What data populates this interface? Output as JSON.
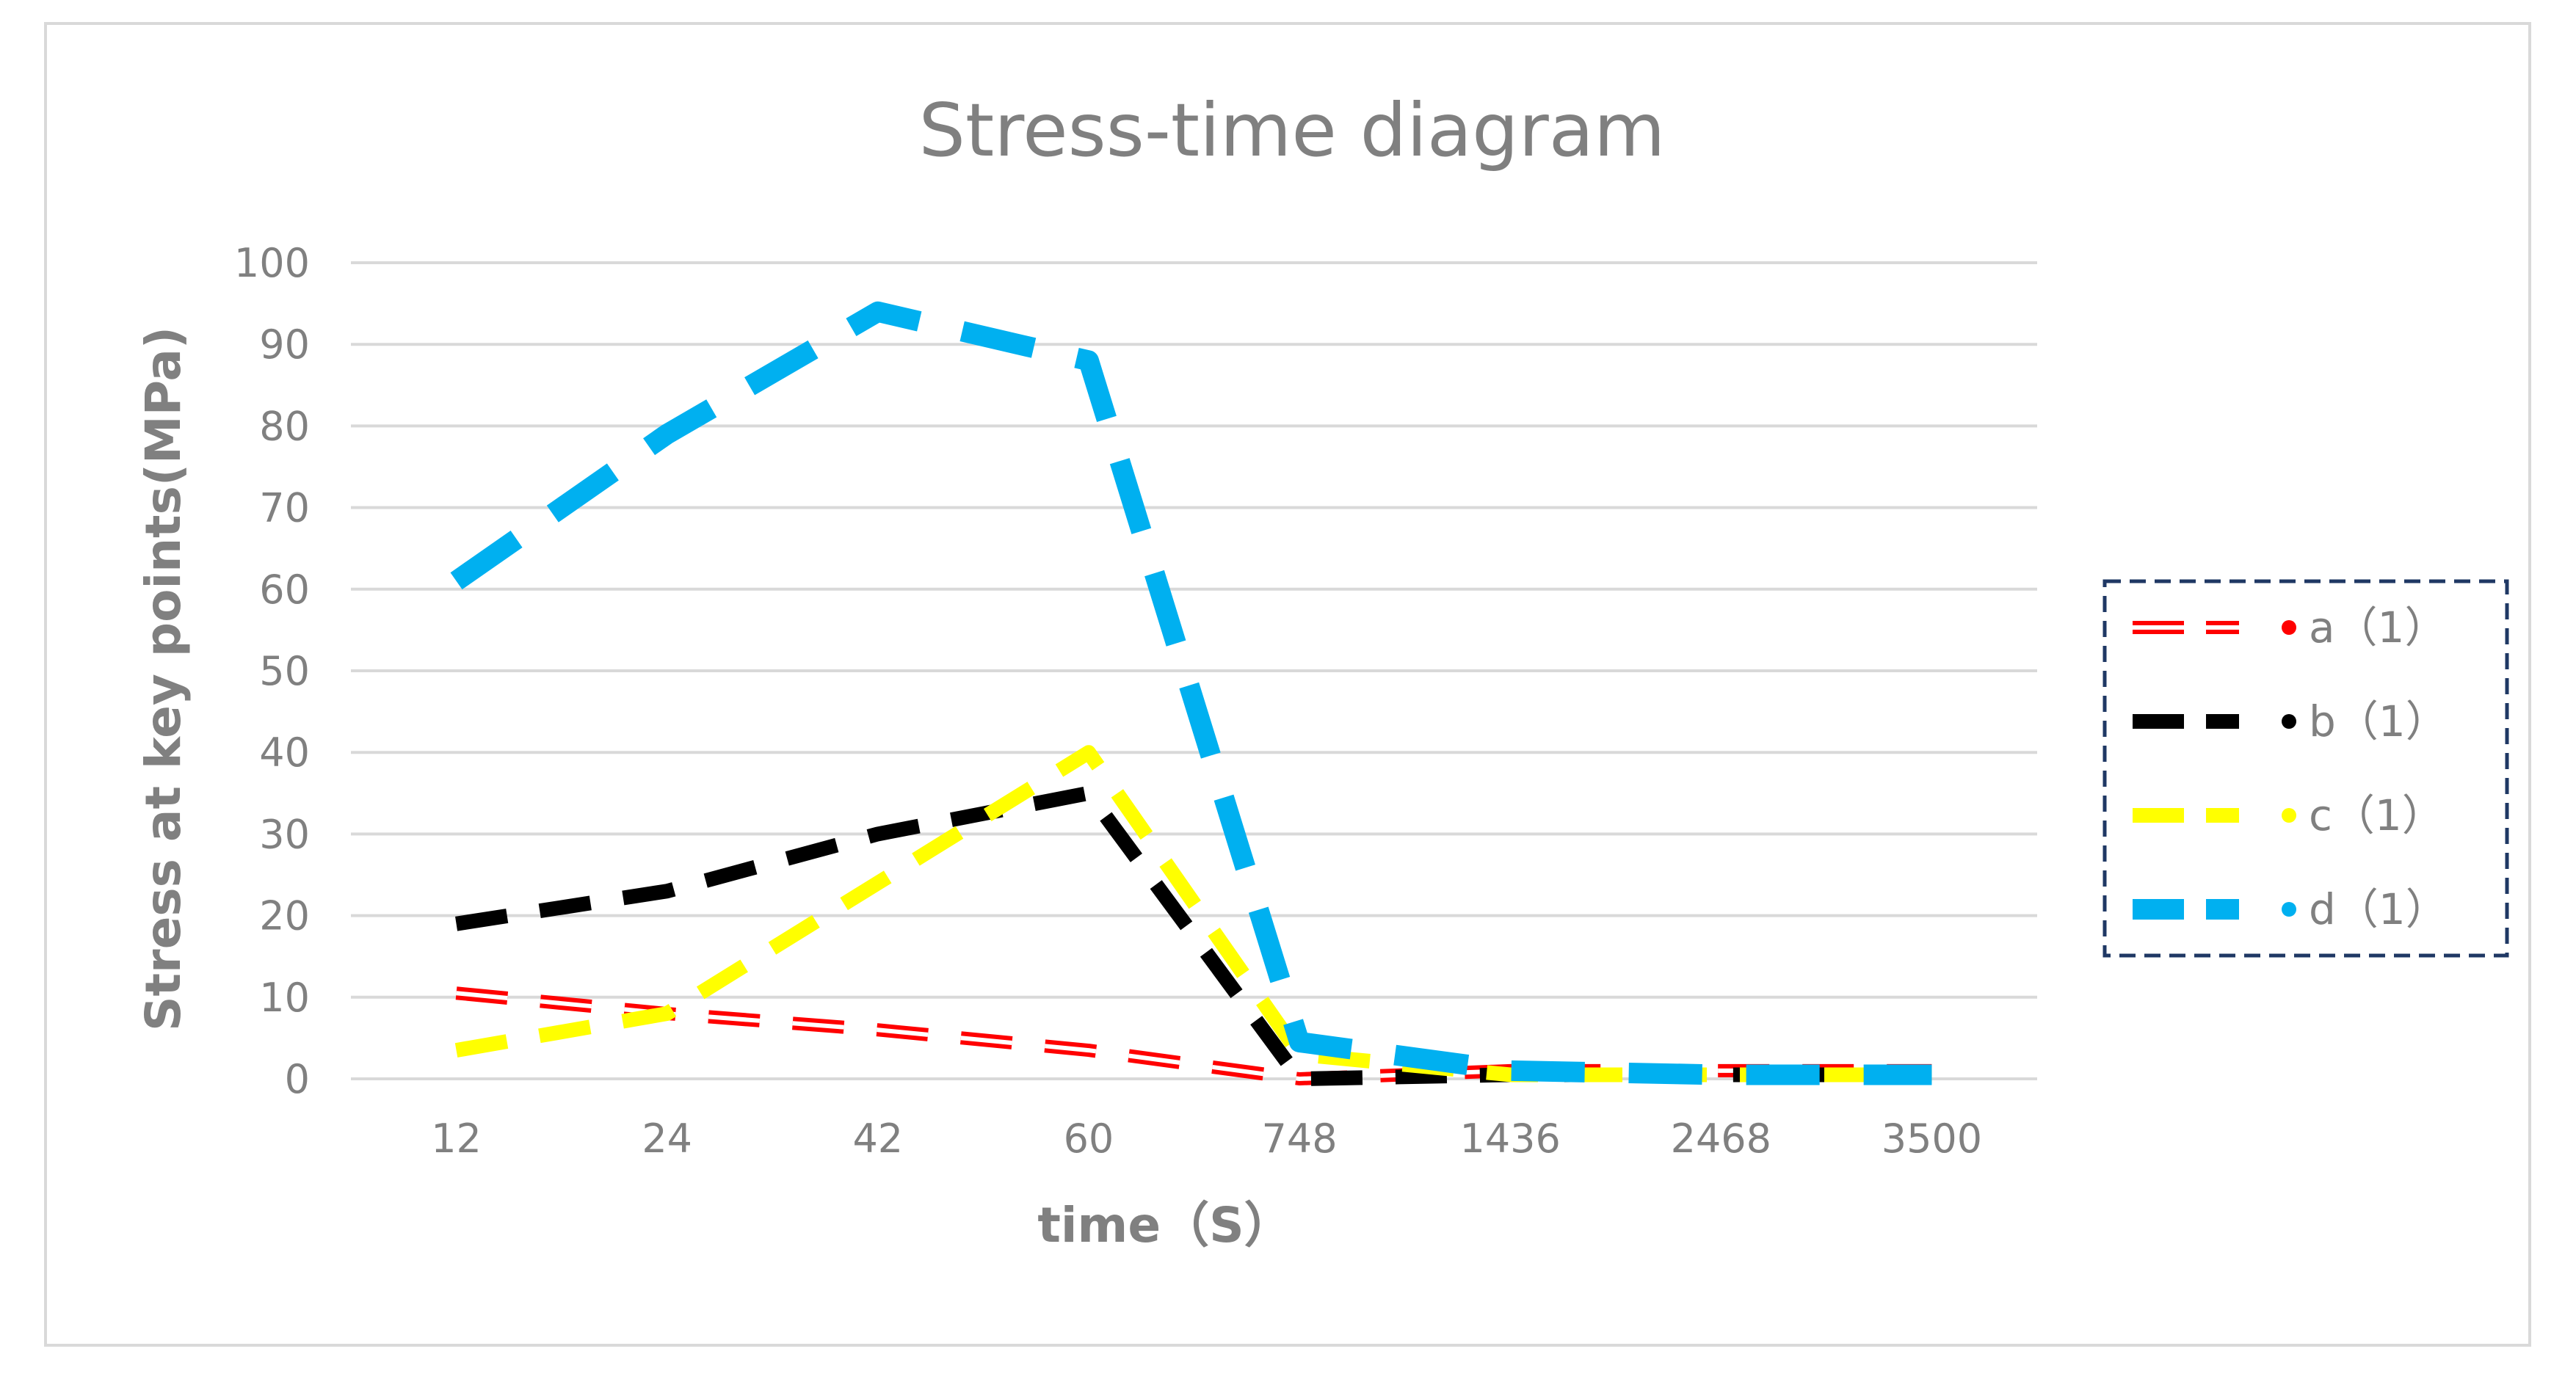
{
  "chart_data": {
    "type": "line",
    "title": "Stress-time diagram",
    "xlabel": "time（S）",
    "ylabel": "Stress at key points(MPa)",
    "categories": [
      "12",
      "24",
      "42",
      "60",
      "748",
      "1436",
      "2468",
      "3500"
    ],
    "ylim": [
      0,
      100
    ],
    "yticks": [
      "0",
      "10",
      "20",
      "30",
      "40",
      "50",
      "60",
      "70",
      "80",
      "90",
      "100"
    ],
    "grid": true,
    "legend_position": "right",
    "series": [
      {
        "name": "a（1）",
        "color": "#ff0000",
        "values": [
          10.5,
          8,
          6,
          3.5,
          0,
          1,
          1,
          1
        ]
      },
      {
        "name": "b（1）",
        "color": "#000000",
        "values": [
          19,
          23,
          30,
          35,
          0,
          0.5,
          0.5,
          0.5
        ]
      },
      {
        "name": "c（1）",
        "color": "#ffff00",
        "values": [
          3.5,
          8,
          24,
          40,
          3,
          0.5,
          0.5,
          0.5
        ]
      },
      {
        "name": "d（1）",
        "color": "#00b0f0",
        "values": [
          61,
          79,
          94,
          88,
          4.5,
          1,
          0.5,
          0.5
        ]
      }
    ]
  }
}
